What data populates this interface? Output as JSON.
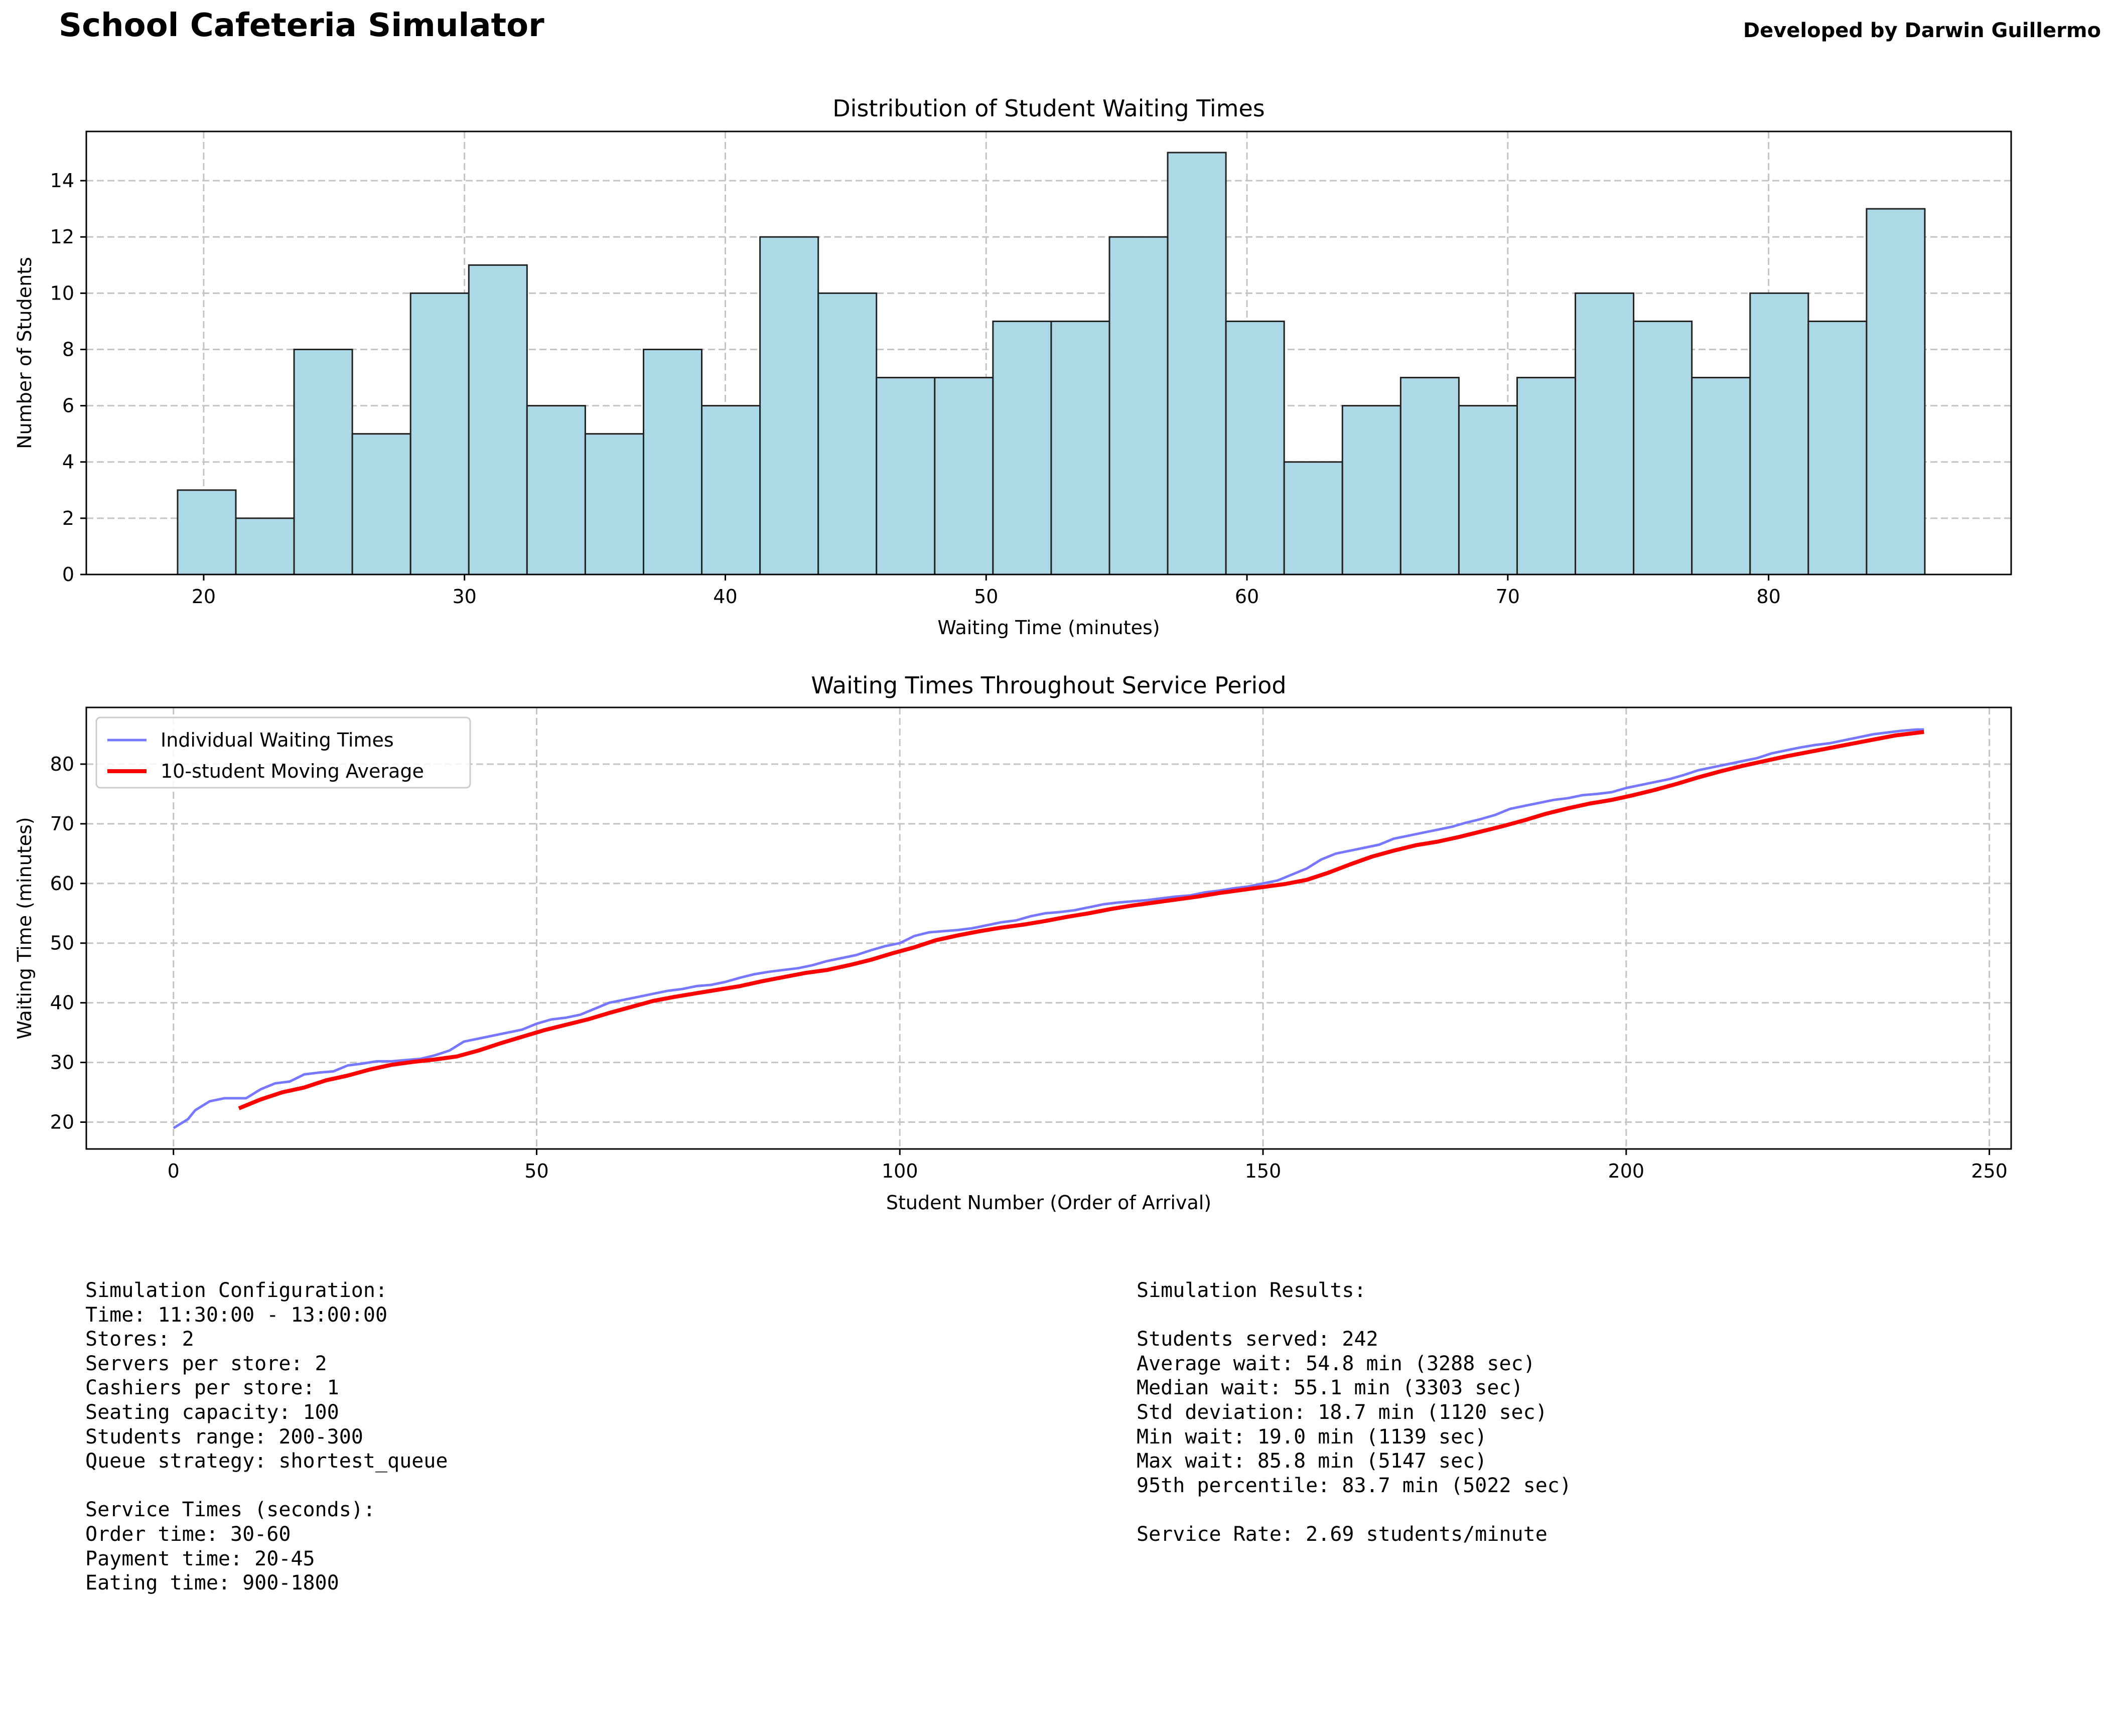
{
  "app": {
    "title": "School Cafeteria Simulator",
    "credit": "Developed by Darwin Guillermo"
  },
  "chart_data": [
    {
      "type": "bar",
      "title": "Distribution of Student Waiting Times",
      "xlabel": "Waiting Time (minutes)",
      "ylabel": "Number of Students",
      "xlim": [
        15.5,
        89.3
      ],
      "ylim": [
        0,
        15.75
      ],
      "xticks": [
        20,
        30,
        40,
        50,
        60,
        70,
        80
      ],
      "yticks": [
        0,
        2,
        4,
        6,
        8,
        10,
        12,
        14
      ],
      "bin_start": 19.0,
      "bin_width": 2.233,
      "values": [
        3,
        2,
        8,
        5,
        10,
        11,
        6,
        5,
        8,
        6,
        12,
        10,
        7,
        7,
        9,
        9,
        12,
        15,
        9,
        4,
        6,
        7,
        6,
        7,
        10,
        9,
        7,
        10,
        9,
        13
      ],
      "grid": true,
      "colors": {
        "bar": "#add8e6",
        "edge": "#222222"
      }
    },
    {
      "type": "line",
      "title": "Waiting Times Throughout Service Period",
      "xlabel": "Student Number (Order of Arrival)",
      "ylabel": "Waiting Time (minutes)",
      "xlim": [
        -12,
        253
      ],
      "ylim": [
        15.5,
        89.5
      ],
      "xticks": [
        0,
        50,
        100,
        150,
        200,
        250
      ],
      "yticks": [
        20,
        30,
        40,
        50,
        60,
        70,
        80
      ],
      "grid": true,
      "legend_position": "top-left",
      "series": [
        {
          "name": "Individual Waiting Times",
          "color": "#7777ff",
          "points": [
            [
              0,
              19.0
            ],
            [
              2,
              20.5
            ],
            [
              3,
              22.0
            ],
            [
              5,
              23.5
            ],
            [
              7,
              24.0
            ],
            [
              10,
              24.0
            ],
            [
              12,
              25.5
            ],
            [
              14,
              26.5
            ],
            [
              16,
              26.8
            ],
            [
              18,
              28.0
            ],
            [
              20,
              28.3
            ],
            [
              22,
              28.5
            ],
            [
              24,
              29.5
            ],
            [
              26,
              29.8
            ],
            [
              28,
              30.2
            ],
            [
              30,
              30.2
            ],
            [
              32,
              30.4
            ],
            [
              34,
              30.6
            ],
            [
              36,
              31.2
            ],
            [
              38,
              32.0
            ],
            [
              40,
              33.5
            ],
            [
              42,
              34.0
            ],
            [
              44,
              34.5
            ],
            [
              46,
              35.0
            ],
            [
              48,
              35.5
            ],
            [
              50,
              36.5
            ],
            [
              52,
              37.2
            ],
            [
              54,
              37.5
            ],
            [
              56,
              38.0
            ],
            [
              58,
              39.0
            ],
            [
              60,
              40.0
            ],
            [
              62,
              40.5
            ],
            [
              64,
              41.0
            ],
            [
              66,
              41.5
            ],
            [
              68,
              42.0
            ],
            [
              70,
              42.3
            ],
            [
              72,
              42.8
            ],
            [
              74,
              43.0
            ],
            [
              76,
              43.5
            ],
            [
              78,
              44.2
            ],
            [
              80,
              44.8
            ],
            [
              82,
              45.2
            ],
            [
              84,
              45.5
            ],
            [
              86,
              45.8
            ],
            [
              88,
              46.3
            ],
            [
              90,
              47.0
            ],
            [
              92,
              47.5
            ],
            [
              94,
              48.0
            ],
            [
              96,
              48.8
            ],
            [
              98,
              49.5
            ],
            [
              100,
              50.0
            ],
            [
              102,
              51.2
            ],
            [
              104,
              51.8
            ],
            [
              106,
              52.0
            ],
            [
              108,
              52.2
            ],
            [
              110,
              52.5
            ],
            [
              112,
              53.0
            ],
            [
              114,
              53.5
            ],
            [
              116,
              53.8
            ],
            [
              118,
              54.5
            ],
            [
              120,
              55.0
            ],
            [
              122,
              55.2
            ],
            [
              124,
              55.5
            ],
            [
              126,
              56.0
            ],
            [
              128,
              56.5
            ],
            [
              130,
              56.8
            ],
            [
              132,
              57.0
            ],
            [
              134,
              57.2
            ],
            [
              136,
              57.5
            ],
            [
              138,
              57.8
            ],
            [
              140,
              58.0
            ],
            [
              142,
              58.5
            ],
            [
              144,
              58.8
            ],
            [
              146,
              59.2
            ],
            [
              148,
              59.5
            ],
            [
              150,
              60.0
            ],
            [
              152,
              60.5
            ],
            [
              154,
              61.5
            ],
            [
              156,
              62.5
            ],
            [
              158,
              64.0
            ],
            [
              160,
              65.0
            ],
            [
              162,
              65.5
            ],
            [
              164,
              66.0
            ],
            [
              166,
              66.5
            ],
            [
              168,
              67.5
            ],
            [
              170,
              68.0
            ],
            [
              172,
              68.5
            ],
            [
              174,
              69.0
            ],
            [
              176,
              69.5
            ],
            [
              178,
              70.2
            ],
            [
              180,
              70.8
            ],
            [
              182,
              71.5
            ],
            [
              184,
              72.5
            ],
            [
              186,
              73.0
            ],
            [
              188,
              73.5
            ],
            [
              190,
              74.0
            ],
            [
              192,
              74.3
            ],
            [
              194,
              74.8
            ],
            [
              196,
              75.0
            ],
            [
              198,
              75.3
            ],
            [
              200,
              76.0
            ],
            [
              202,
              76.5
            ],
            [
              204,
              77.0
            ],
            [
              206,
              77.5
            ],
            [
              208,
              78.2
            ],
            [
              210,
              79.0
            ],
            [
              212,
              79.5
            ],
            [
              214,
              80.0
            ],
            [
              216,
              80.5
            ],
            [
              218,
              81.0
            ],
            [
              220,
              81.8
            ],
            [
              222,
              82.3
            ],
            [
              224,
              82.8
            ],
            [
              226,
              83.2
            ],
            [
              228,
              83.5
            ],
            [
              230,
              84.0
            ],
            [
              232,
              84.5
            ],
            [
              234,
              85.0
            ],
            [
              236,
              85.3
            ],
            [
              238,
              85.6
            ],
            [
              240,
              85.8
            ],
            [
              241,
              85.8
            ]
          ]
        },
        {
          "name": "10-student Moving Average",
          "color": "#ff0000",
          "points": [
            [
              9,
              22.3
            ],
            [
              12,
              23.8
            ],
            [
              15,
              25.0
            ],
            [
              18,
              25.8
            ],
            [
              21,
              27.0
            ],
            [
              24,
              27.8
            ],
            [
              27,
              28.8
            ],
            [
              30,
              29.6
            ],
            [
              33,
              30.1
            ],
            [
              36,
              30.5
            ],
            [
              39,
              31.0
            ],
            [
              42,
              32.0
            ],
            [
              45,
              33.2
            ],
            [
              48,
              34.3
            ],
            [
              51,
              35.4
            ],
            [
              54,
              36.3
            ],
            [
              57,
              37.2
            ],
            [
              60,
              38.3
            ],
            [
              63,
              39.3
            ],
            [
              66,
              40.3
            ],
            [
              69,
              41.0
            ],
            [
              72,
              41.6
            ],
            [
              75,
              42.2
            ],
            [
              78,
              42.8
            ],
            [
              81,
              43.6
            ],
            [
              84,
              44.3
            ],
            [
              87,
              45.0
            ],
            [
              90,
              45.5
            ],
            [
              93,
              46.3
            ],
            [
              96,
              47.2
            ],
            [
              99,
              48.3
            ],
            [
              102,
              49.3
            ],
            [
              105,
              50.5
            ],
            [
              108,
              51.3
            ],
            [
              111,
              52.0
            ],
            [
              114,
              52.6
            ],
            [
              117,
              53.1
            ],
            [
              120,
              53.7
            ],
            [
              123,
              54.4
            ],
            [
              126,
              55.0
            ],
            [
              129,
              55.7
            ],
            [
              132,
              56.3
            ],
            [
              135,
              56.8
            ],
            [
              138,
              57.3
            ],
            [
              141,
              57.8
            ],
            [
              144,
              58.4
            ],
            [
              147,
              58.9
            ],
            [
              150,
              59.4
            ],
            [
              153,
              59.9
            ],
            [
              156,
              60.6
            ],
            [
              159,
              61.8
            ],
            [
              162,
              63.2
            ],
            [
              165,
              64.5
            ],
            [
              168,
              65.5
            ],
            [
              171,
              66.4
            ],
            [
              174,
              67.0
            ],
            [
              177,
              67.8
            ],
            [
              180,
              68.7
            ],
            [
              183,
              69.6
            ],
            [
              186,
              70.6
            ],
            [
              189,
              71.7
            ],
            [
              192,
              72.6
            ],
            [
              195,
              73.4
            ],
            [
              198,
              74.0
            ],
            [
              201,
              74.8
            ],
            [
              204,
              75.7
            ],
            [
              207,
              76.7
            ],
            [
              210,
              77.8
            ],
            [
              213,
              78.8
            ],
            [
              216,
              79.7
            ],
            [
              219,
              80.5
            ],
            [
              222,
              81.3
            ],
            [
              225,
              82.0
            ],
            [
              228,
              82.7
            ],
            [
              231,
              83.4
            ],
            [
              234,
              84.1
            ],
            [
              237,
              84.8
            ],
            [
              241,
              85.4
            ]
          ]
        }
      ]
    }
  ],
  "config_panel": [
    "Simulation Configuration:",
    "Time: 11:30:00 - 13:00:00",
    "Stores: 2",
    "Servers per store: 2",
    "Cashiers per store: 1",
    "Seating capacity: 100",
    "Students range: 200-300",
    "Queue strategy: shortest_queue",
    "",
    "Service Times (seconds):",
    "Order time: 30-60",
    "Payment time: 20-45",
    "Eating time: 900-1800"
  ],
  "results_panel": [
    "Simulation Results:",
    "",
    "Students served: 242",
    "Average wait: 54.8 min (3288 sec)",
    "Median wait: 55.1 min (3303 sec)",
    "Std deviation: 18.7 min (1120 sec)",
    "Min wait: 19.0 min (1139 sec)",
    "Max wait: 85.8 min (5147 sec)",
    "95th percentile: 83.7 min (5022 sec)",
    "",
    "Service Rate: 2.69 students/minute"
  ]
}
